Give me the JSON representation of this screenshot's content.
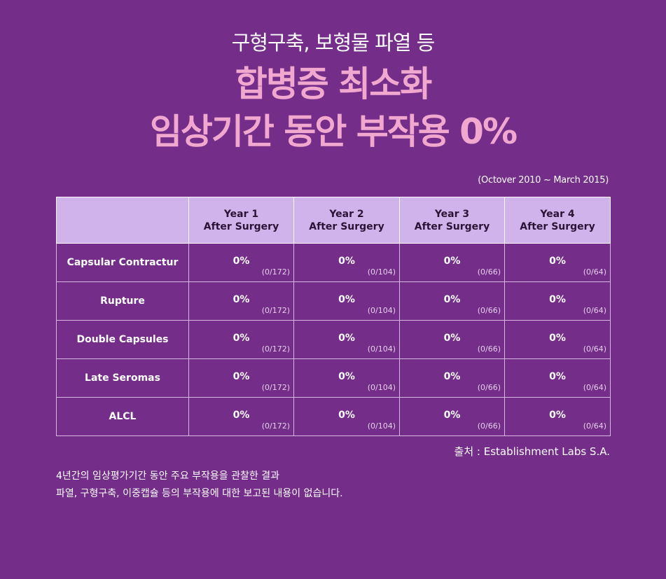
{
  "subtitle": "구형구축, 보형물 파열 등",
  "headline": {
    "line1": "합병증 최소화",
    "line2": "임상기간 동안 부작용 0%"
  },
  "period": "(Octover 2010 ~ March 2015)",
  "table": {
    "headers": [
      {
        "line1": "Year 1",
        "line2": "After Surgery"
      },
      {
        "line1": "Year 2",
        "line2": "After Surgery"
      },
      {
        "line1": "Year 3",
        "line2": "After Surgery"
      },
      {
        "line1": "Year 4",
        "line2": "After Surgery"
      }
    ],
    "rows": [
      {
        "label": "Capsular Contractur",
        "cells": [
          {
            "pct": "0%",
            "count": "(0/172)"
          },
          {
            "pct": "0%",
            "count": "(0/104)"
          },
          {
            "pct": "0%",
            "count": "(0/66)"
          },
          {
            "pct": "0%",
            "count": "(0/64)"
          }
        ]
      },
      {
        "label": "Rupture",
        "cells": [
          {
            "pct": "0%",
            "count": "(0/172)"
          },
          {
            "pct": "0%",
            "count": "(0/104)"
          },
          {
            "pct": "0%",
            "count": "(0/66)"
          },
          {
            "pct": "0%",
            "count": "(0/64)"
          }
        ]
      },
      {
        "label": "Double Capsules",
        "cells": [
          {
            "pct": "0%",
            "count": "(0/172)"
          },
          {
            "pct": "0%",
            "count": "(0/104)"
          },
          {
            "pct": "0%",
            "count": "(0/66)"
          },
          {
            "pct": "0%",
            "count": "(0/64)"
          }
        ]
      },
      {
        "label": "Late Seromas",
        "cells": [
          {
            "pct": "0%",
            "count": "(0/172)"
          },
          {
            "pct": "0%",
            "count": "(0/104)"
          },
          {
            "pct": "0%",
            "count": "(0/66)"
          },
          {
            "pct": "0%",
            "count": "(0/64)"
          }
        ]
      },
      {
        "label": "ALCL",
        "cells": [
          {
            "pct": "0%",
            "count": "(0/172)"
          },
          {
            "pct": "0%",
            "count": "(0/104)"
          },
          {
            "pct": "0%",
            "count": "(0/66)"
          },
          {
            "pct": "0%",
            "count": "(0/64)"
          }
        ]
      }
    ]
  },
  "source": "출처 : Establishment Labs S.A.",
  "note": {
    "line1": "4년간의 임상평가기간 동안 주요 부작용을 관찰한 결과",
    "line2": "파열, 구형구축, 이중캡슐 등의 부작용에 대한 보고된 내용이 없습니다."
  },
  "colors": {
    "background": "#742d89",
    "headline": "#f0a8cf",
    "table_header": "#d1b3ec"
  }
}
